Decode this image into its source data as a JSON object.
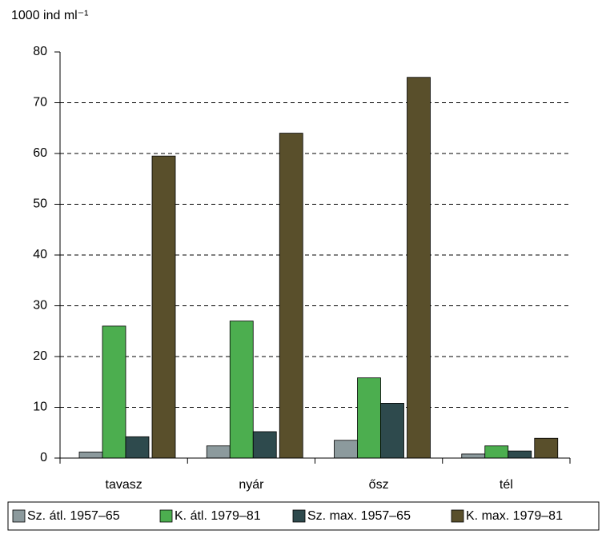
{
  "chart_data": {
    "type": "bar",
    "y_label": "1000 ind ml⁻¹",
    "categories": [
      "tavasz",
      "nyár",
      "ősz",
      "tél"
    ],
    "series": [
      {
        "name": "Sz. átl. 1957–65",
        "color": "#8c9a9d",
        "values": [
          1.2,
          2.4,
          3.5,
          0.8
        ]
      },
      {
        "name": "K. átl. 1979–81",
        "color": "#4cae4f",
        "values": [
          26,
          27,
          15.8,
          2.4
        ]
      },
      {
        "name": "Sz. max. 1957–65",
        "color": "#2e4a4d",
        "values": [
          4.2,
          5.2,
          10.8,
          1.4
        ]
      },
      {
        "name": "K. max. 1979–81",
        "color": "#594f2b",
        "values": [
          59.5,
          64,
          75,
          3.9
        ]
      }
    ],
    "ylim": [
      0,
      80
    ],
    "yticks": [
      0,
      10,
      20,
      30,
      40,
      50,
      60,
      70,
      80
    ],
    "grid": true
  }
}
